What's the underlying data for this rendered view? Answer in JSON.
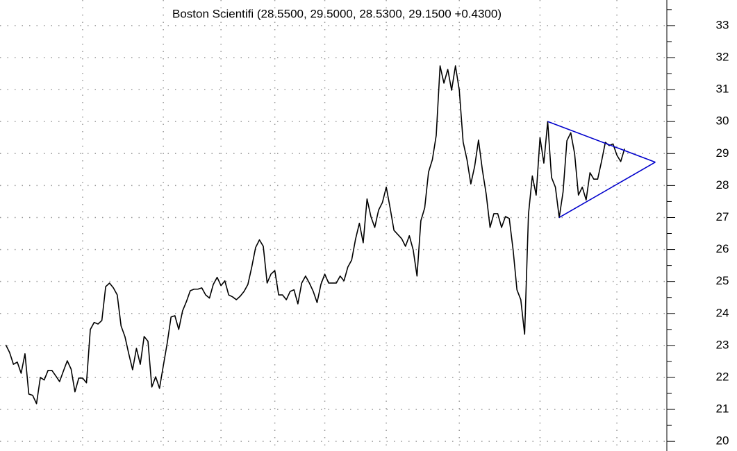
{
  "chart_data": {
    "type": "line",
    "subtitle": "Boston Scientifi (28.5500, 29.5000, 28.5300, 29.1500 +0.4300)",
    "series": [
      {
        "color": "#000000",
        "values": [
          23.02,
          22.78,
          22.41,
          22.48,
          22.13,
          22.74,
          21.48,
          21.44,
          21.18,
          22.0,
          21.92,
          22.22,
          22.22,
          22.05,
          21.87,
          22.2,
          22.52,
          22.26,
          21.55,
          21.98,
          21.98,
          21.83,
          23.5,
          23.72,
          23.67,
          23.78,
          24.84,
          24.95,
          24.8,
          24.58,
          23.61,
          23.28,
          22.74,
          22.24,
          22.91,
          22.41,
          23.28,
          23.13,
          21.7,
          22.02,
          21.66,
          22.37,
          23.07,
          23.89,
          23.93,
          23.5,
          24.08,
          24.37,
          24.71,
          24.76,
          24.76,
          24.8,
          24.58,
          24.48,
          24.91,
          25.13,
          24.87,
          25.02,
          24.58,
          24.52,
          24.43,
          24.54,
          24.69,
          24.91,
          25.45,
          26.06,
          26.3,
          26.1,
          24.95,
          25.23,
          25.34,
          24.58,
          24.58,
          24.43,
          24.69,
          24.74,
          24.3,
          24.95,
          25.17,
          24.95,
          24.69,
          24.34,
          24.91,
          25.23,
          24.95,
          24.95,
          24.95,
          25.17,
          25.02,
          25.45,
          25.67,
          26.32,
          26.82,
          26.21,
          27.58,
          27.03,
          26.69,
          27.23,
          27.47,
          27.95,
          27.3,
          26.6,
          26.47,
          26.34,
          26.1,
          26.43,
          25.99,
          25.17,
          26.9,
          27.3,
          28.42,
          28.81,
          29.57,
          31.74,
          31.2,
          31.63,
          30.98,
          31.74,
          30.98,
          29.36,
          28.81,
          28.05,
          28.6,
          29.42,
          28.49,
          27.73,
          26.69,
          27.12,
          27.12,
          26.69,
          27.03,
          26.97,
          25.99,
          24.74,
          24.43,
          23.35,
          27.1,
          28.3,
          27.7,
          29.5,
          28.7,
          30.0,
          28.25,
          27.95,
          27.0,
          27.8,
          29.4,
          29.65,
          29.0,
          27.7,
          27.95,
          27.55,
          28.4,
          28.2,
          28.2,
          28.75,
          29.35,
          29.25,
          29.3,
          28.95,
          28.75,
          29.15
        ]
      }
    ],
    "trendlines": [
      {
        "color": "#0000cc",
        "x": [
          141,
          169
        ],
        "y": [
          30.0,
          28.73
        ]
      },
      {
        "color": "#0000cc",
        "x": [
          144,
          169
        ],
        "y": [
          27.0,
          28.73
        ]
      }
    ],
    "xlim": [
      -1.5,
      172
    ],
    "xticks": [
      20,
      41,
      56,
      70,
      83,
      99,
      118,
      139,
      159
    ],
    "ylim": [
      19.7,
      33.8
    ],
    "yticks": [
      20,
      21,
      22,
      23,
      24,
      25,
      26,
      27,
      28,
      29,
      30,
      31,
      32,
      33
    ],
    "yminorticks": [
      20.5,
      21.5,
      22.5,
      23.5,
      24.5,
      25.5,
      26.5,
      27.5,
      28.5,
      29.5,
      30.5,
      31.5,
      32.5,
      33.5
    ],
    "grid": true
  }
}
